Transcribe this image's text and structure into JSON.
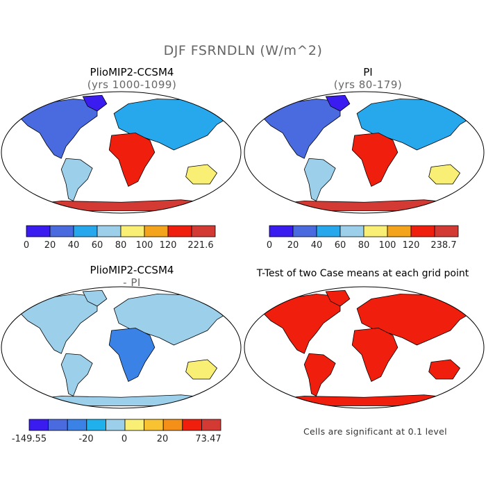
{
  "main_title": "DJF FSRNDLN (W/m^2)",
  "panels": [
    {
      "title": "PlioMIP2-CCSM4",
      "subtitle": "(yrs 1000-1099)"
    },
    {
      "title": "PI",
      "subtitle": "(yrs 80-179)"
    },
    {
      "title": "PlioMIP2-CCSM4",
      "subtitle": "- PI"
    },
    {
      "title": "T-Test of two Case means at each grid point",
      "subtitle": ""
    }
  ],
  "colorbars": [
    {
      "colors": [
        "#3a1cf0",
        "#4a6ae0",
        "#28a8ec",
        "#9ccfea",
        "#f8ef74",
        "#f4a31c",
        "#f01e0c",
        "#d43a34"
      ],
      "labels": [
        "0",
        "20",
        "40",
        "60",
        "80",
        "100",
        "120",
        "221.6"
      ]
    },
    {
      "colors": [
        "#3a1cf0",
        "#4a6ae0",
        "#28a8ec",
        "#9ccfea",
        "#f8ef74",
        "#f4a31c",
        "#f01e0c",
        "#d43a34"
      ],
      "labels": [
        "0",
        "20",
        "40",
        "60",
        "80",
        "100",
        "120",
        "238.7"
      ]
    },
    {
      "colors": [
        "#3a1cf0",
        "#4a6ae0",
        "#3a82e6",
        "#20b0ec",
        "#9ccfea",
        "#f8ef74",
        "#f8c232",
        "#f49018",
        "#f01e0c",
        "#d43a34"
      ],
      "labels": [
        "-149.55",
        "-20",
        "0",
        "20",
        "73.47"
      ]
    }
  ],
  "note": "Cells are significant at 0.1 level"
}
